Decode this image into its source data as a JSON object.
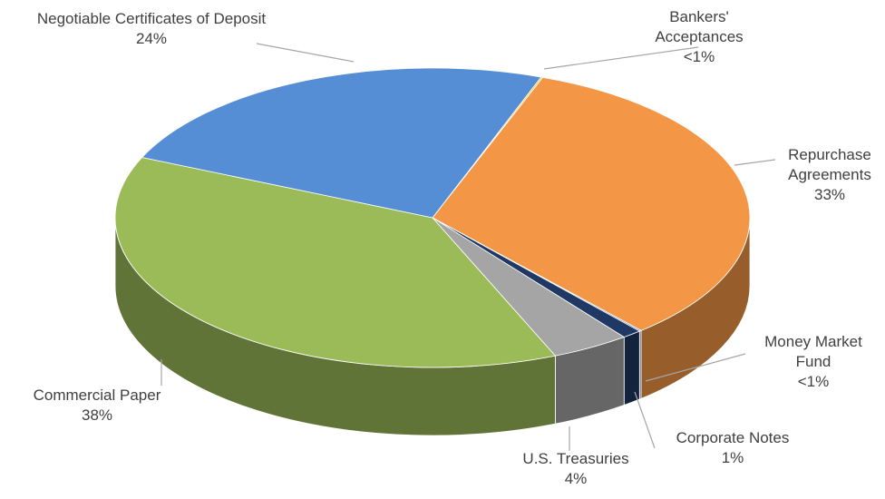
{
  "chart_data": {
    "type": "pie3d",
    "categories": [
      "Bankers' Acceptances",
      "Repurchase Agreements",
      "Money Market Fund",
      "Corporate Notes",
      "U.S. Treasuries",
      "Commercial Paper",
      "Negotiable Certificates of Deposit"
    ],
    "values": [
      0.1,
      33,
      0.1,
      1,
      4,
      38,
      24
    ],
    "value_labels": [
      "<1%",
      "33%",
      "<1%",
      "1%",
      "4%",
      "38%",
      "24%"
    ],
    "colors": [
      "#ffc000",
      "#f39645",
      "#4472c4",
      "#1f3864",
      "#a5a5a5",
      "#9bbb59",
      "#558ed5"
    ]
  }
}
